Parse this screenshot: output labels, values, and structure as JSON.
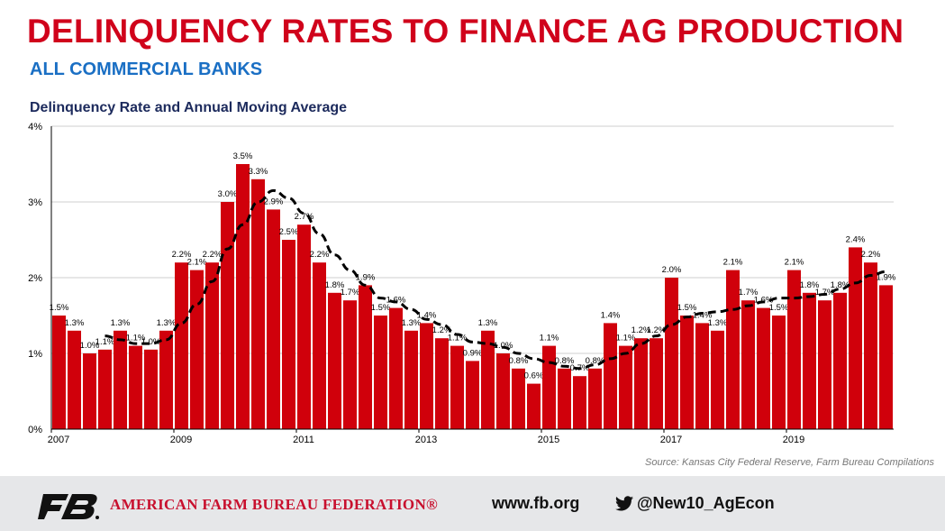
{
  "header": {
    "title": "DELINQUENCY RATES TO FINANCE AG PRODUCTION",
    "subtitle": "ALL COMMERCIAL BANKS"
  },
  "chart_data": {
    "type": "bar",
    "title": "Delinquency Rate and Annual Moving Average",
    "frequency": "quarterly",
    "start": "2007 Q1",
    "xtick_labels": [
      "2007",
      "2009",
      "2011",
      "2013",
      "2015",
      "2017",
      "2019"
    ],
    "ytick_labels": [
      "0%",
      "1%",
      "2%",
      "3%",
      "4%"
    ],
    "ylim": [
      0,
      4
    ],
    "grid": "horizontal",
    "bar_color": "#d0000b",
    "values": [
      1.5,
      1.3,
      1.0,
      1.05,
      1.3,
      1.1,
      1.05,
      1.3,
      2.2,
      2.1,
      2.2,
      3.0,
      3.5,
      3.3,
      2.9,
      2.5,
      2.7,
      2.2,
      1.8,
      1.7,
      1.9,
      1.5,
      1.6,
      1.3,
      1.4,
      1.2,
      1.1,
      0.9,
      1.3,
      1.0,
      0.8,
      0.6,
      1.1,
      0.8,
      0.7,
      0.8,
      1.4,
      1.1,
      1.2,
      1.2,
      2.0,
      1.5,
      1.4,
      1.3,
      2.1,
      1.7,
      1.6,
      1.5,
      2.1,
      1.8,
      1.7,
      1.8,
      2.4,
      2.2,
      1.9
    ],
    "labels": [
      "1.5%",
      "1.3%",
      "1.0%",
      "1.1%",
      "1.3%",
      "1.1%",
      "1.0%",
      "1.3%",
      "2.2%",
      "2.1%",
      "2.2%",
      "3.0%",
      "3.5%",
      "3.3%",
      "2.9%",
      "2.5%",
      "2.7%",
      "2.2%",
      "1.8%",
      "1.7%",
      "1.9%",
      "1.5%",
      "1.6%",
      "1.3%",
      "1.4%",
      "1.2%",
      "1.1%",
      "0.9%",
      "1.3%",
      "1.0%",
      "0.8%",
      "0.6%",
      "1.1%",
      "0.8%",
      "0.7%",
      "0.8%",
      "1.4%",
      "1.1%",
      "1.2%",
      "1.2%",
      "2.0%",
      "1.5%",
      "1.4%",
      "1.3%",
      "2.1%",
      "1.7%",
      "1.6%",
      "1.5%",
      "2.1%",
      "1.8%",
      "1.7%",
      "1.8%",
      "2.4%",
      "2.2%",
      "1.9%"
    ],
    "moving_average": {
      "style": "dashed",
      "color": "#000000",
      "start_index": 3,
      "values": [
        1.23,
        1.18,
        1.13,
        1.13,
        1.18,
        1.4,
        1.65,
        1.95,
        2.38,
        2.7,
        3.0,
        3.15,
        3.05,
        2.85,
        2.58,
        2.3,
        2.1,
        1.9,
        1.73,
        1.68,
        1.58,
        1.45,
        1.38,
        1.25,
        1.15,
        1.13,
        1.08,
        1.0,
        0.93,
        0.88,
        0.83,
        0.8,
        0.85,
        0.93,
        1.0,
        1.13,
        1.23,
        1.38,
        1.48,
        1.53,
        1.55,
        1.58,
        1.63,
        1.68,
        1.73,
        1.73,
        1.75,
        1.78,
        1.85,
        1.93,
        2.03,
        2.08
      ]
    }
  },
  "source": "Source: Kansas City Federal Reserve, Farm Bureau Compilations",
  "footer": {
    "org": "AMERICAN FARM BUREAU FEDERATION®",
    "website": "www.fb.org",
    "twitter": "@New10_AgEcon",
    "logo_text": "FB"
  }
}
